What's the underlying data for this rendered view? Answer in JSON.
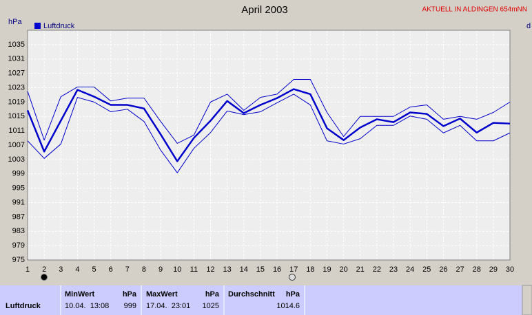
{
  "chart_data": {
    "type": "line",
    "title": "April 2003",
    "subtitle": "AKTUELL IN ALDINGEN 654mNN",
    "y_label": "hPa",
    "y2_label": "d",
    "x": [
      1,
      2,
      3,
      4,
      5,
      6,
      7,
      8,
      9,
      10,
      11,
      12,
      13,
      14,
      15,
      16,
      17,
      18,
      19,
      20,
      21,
      22,
      23,
      24,
      25,
      26,
      27,
      28,
      29,
      30
    ],
    "xlim": [
      1,
      30
    ],
    "xticks": [
      1,
      2,
      3,
      4,
      5,
      6,
      7,
      8,
      9,
      10,
      11,
      12,
      13,
      14,
      15,
      16,
      17,
      18,
      19,
      20,
      21,
      22,
      23,
      24,
      25,
      26,
      27,
      28,
      29,
      30
    ],
    "ylim": [
      975,
      1039
    ],
    "yticks": [
      975,
      979,
      983,
      987,
      991,
      995,
      999,
      1003,
      1007,
      1011,
      1015,
      1019,
      1023,
      1027,
      1031,
      1035
    ],
    "grid": true,
    "series": [
      {
        "name": "Luftdruck",
        "color": "#0000cc",
        "values": [
          1016.7,
          1005.2,
          1013.8,
          1022.4,
          1020.5,
          1018.2,
          1018.2,
          1017.2,
          1010,
          1002.5,
          1009,
          1013.8,
          1019.3,
          1015.9,
          1018.2,
          1020.1,
          1022.6,
          1021.2,
          1011.7,
          1008.4,
          1011.9,
          1014.2,
          1013.4,
          1016.1,
          1015.7,
          1012.3,
          1014.4,
          1010.5,
          1013.2,
          1013
        ]
      },
      {
        "color": "#0000cc",
        "values": [
          1022,
          1008.4,
          1020.5,
          1023.2,
          1023.2,
          1019.3,
          1020.1,
          1020.1,
          1013.6,
          1007.5,
          1009.8,
          1019,
          1021.2,
          1016.7,
          1020.3,
          1021.2,
          1025.3,
          1025.3,
          1016.1,
          1009.4,
          1015,
          1015,
          1015,
          1017.6,
          1018.2,
          1014.2,
          1015,
          1014.2,
          1016.1,
          1019
        ]
      },
      {
        "color": "#0000cc",
        "values": [
          1008.2,
          1003.3,
          1007.3,
          1020.3,
          1019,
          1016.3,
          1017,
          1013.6,
          1005.6,
          999.3,
          1006.1,
          1010.5,
          1016.5,
          1015.5,
          1016.3,
          1018.8,
          1021.2,
          1018.2,
          1008.2,
          1007.3,
          1008.8,
          1012.5,
          1012.5,
          1015.1,
          1014.2,
          1010.4,
          1012.5,
          1008.2,
          1008.2,
          1010.4
        ]
      }
    ]
  },
  "table": {
    "headers": [
      [
        "MinWert",
        "hPa"
      ],
      [
        "MaxWert",
        "hPa"
      ],
      [
        "Durchschnitt",
        "hPa"
      ]
    ],
    "rows": [
      {
        "label": "Luftdruck",
        "cells": [
          "10.04.  13:08",
          999,
          "17.04.  23:01",
          1025,
          1014.6
        ]
      }
    ]
  }
}
